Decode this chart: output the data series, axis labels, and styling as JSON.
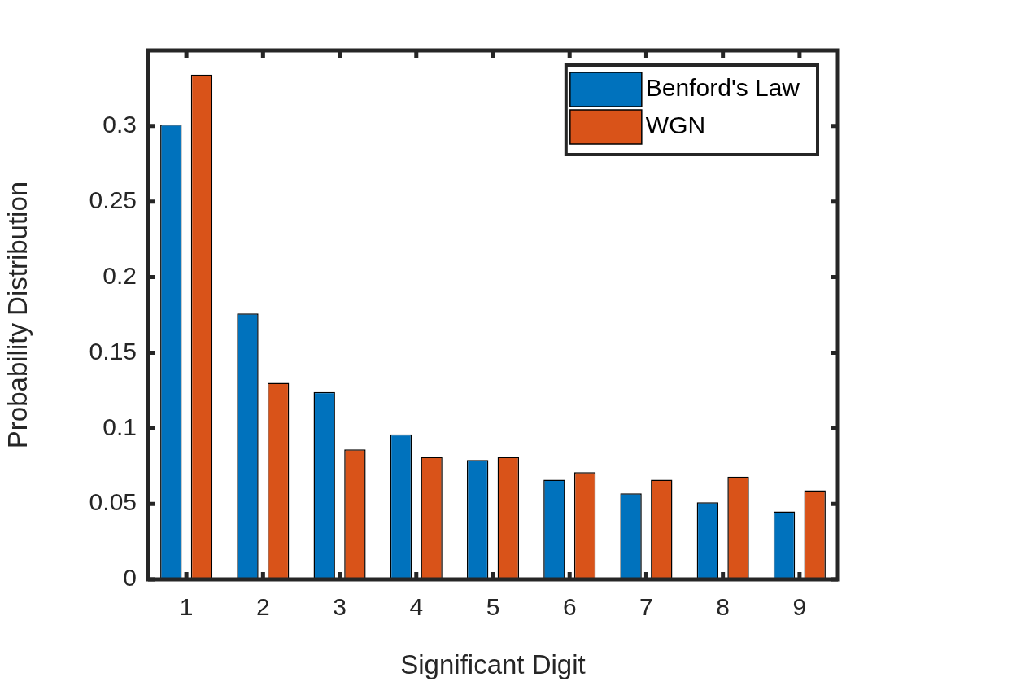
{
  "chart_data": {
    "type": "bar",
    "xlabel": "Significant Digit",
    "ylabel": "Probability Distribution",
    "categories": [
      "1",
      "2",
      "3",
      "4",
      "5",
      "6",
      "7",
      "8",
      "9"
    ],
    "series": [
      {
        "name": "Benford's Law",
        "color": "#0072bd",
        "values": [
          0.301,
          0.176,
          0.124,
          0.096,
          0.079,
          0.066,
          0.057,
          0.051,
          0.045
        ]
      },
      {
        "name": "WGN",
        "color": "#d95319",
        "values": [
          0.334,
          0.13,
          0.086,
          0.081,
          0.081,
          0.071,
          0.066,
          0.068,
          0.059
        ]
      }
    ],
    "ylim": [
      0,
      0.35
    ],
    "yticks": [
      0,
      0.05,
      0.1,
      0.15,
      0.2,
      0.25,
      0.3
    ],
    "grid": false,
    "legend": "top right"
  }
}
